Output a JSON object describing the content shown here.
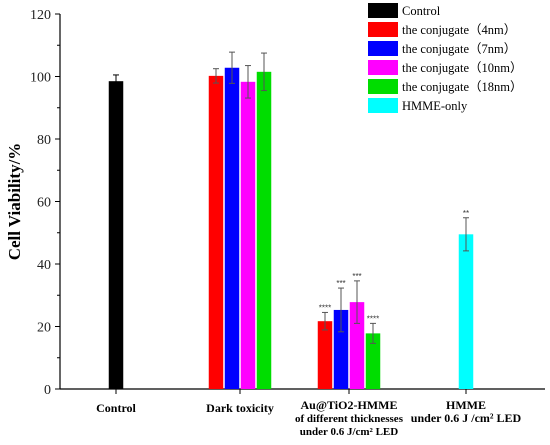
{
  "chart_data": {
    "type": "bar",
    "title": "",
    "xlabel": "",
    "ylabel": "Cell Viability/%",
    "ylim": [
      0,
      120
    ],
    "yticks": [
      0,
      20,
      40,
      60,
      80,
      100,
      120
    ],
    "grid": false,
    "legend_position": "top-right",
    "groups": [
      {
        "label_lines": [
          "Control"
        ],
        "bars": [
          {
            "series": "Control",
            "value": 98.5,
            "error": 2.0,
            "sig": ""
          }
        ]
      },
      {
        "label_lines": [
          "Dark toxicity"
        ],
        "bars": [
          {
            "series": "the conjugate（4nm）",
            "value": 100.2,
            "error": 2.3,
            "sig": ""
          },
          {
            "series": "the conjugate（7nm）",
            "value": 102.8,
            "error": 5.0,
            "sig": ""
          },
          {
            "series": "the conjugate（10nm）",
            "value": 98.3,
            "error": 5.2,
            "sig": ""
          },
          {
            "series": "the conjugate（18nm）",
            "value": 101.5,
            "error": 6.0,
            "sig": ""
          }
        ]
      },
      {
        "label_lines": [
          "Au@TiO2-HMME",
          "of different thicknesses",
          "under 0.6 J/cm² LED"
        ],
        "bars": [
          {
            "series": "the conjugate（4nm）",
            "value": 21.7,
            "error": 2.8,
            "sig": "****"
          },
          {
            "series": "the conjugate（7nm）",
            "value": 25.3,
            "error": 7.0,
            "sig": "***"
          },
          {
            "series": "the conjugate（10nm）",
            "value": 27.8,
            "error": 6.8,
            "sig": "***"
          },
          {
            "series": "the conjugate（18nm）",
            "value": 17.8,
            "error": 3.2,
            "sig": "****"
          }
        ]
      },
      {
        "label_lines": [
          "HMME",
          "under 0.6 J /cm² LED"
        ],
        "bars": [
          {
            "series": "HMME-only",
            "value": 49.5,
            "error": 5.3,
            "sig": "**"
          }
        ]
      }
    ],
    "series": [
      {
        "name": "Control",
        "color": "#000000"
      },
      {
        "name": "the conjugate（4nm）",
        "color": "#ff0000"
      },
      {
        "name": "the conjugate（7nm）",
        "color": "#0000ff"
      },
      {
        "name": "the conjugate（10nm）",
        "color": "#ff00ff"
      },
      {
        "name": "the conjugate（18nm）",
        "color": "#00dd00"
      },
      {
        "name": "HMME-only",
        "color": "#00ffff"
      }
    ]
  }
}
